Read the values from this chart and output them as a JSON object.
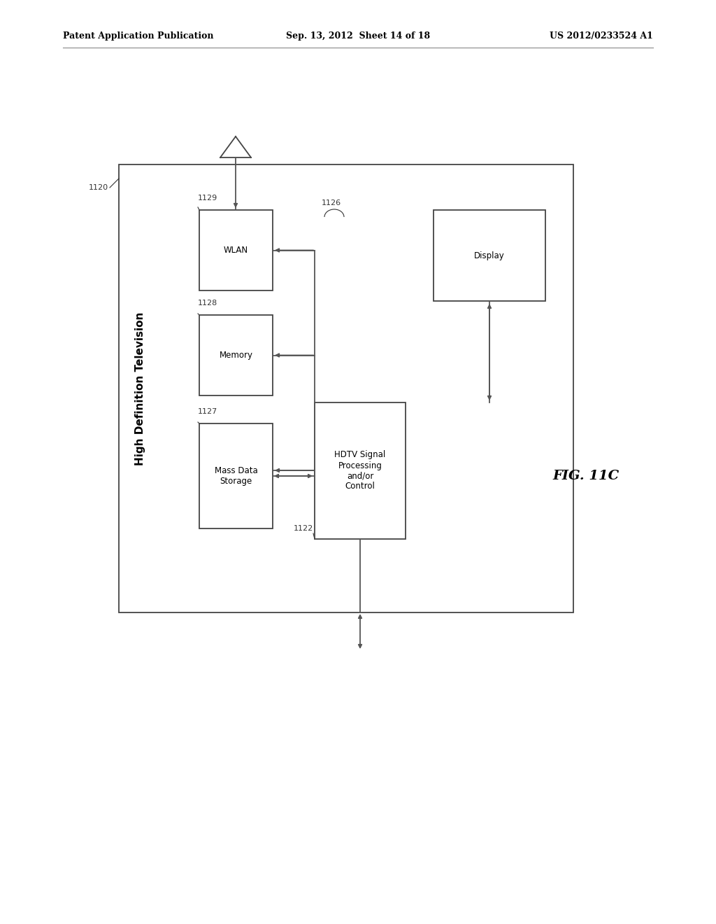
{
  "bg_color": "#ffffff",
  "header_left": "Patent Application Publication",
  "header_center": "Sep. 13, 2012  Sheet 14 of 18",
  "header_right": "US 2012/0233524 A1",
  "fig_label": "FIG. 11C",
  "outer_box_label": "1120",
  "outer_box_text": "High Definition Television",
  "line_color": "#555555",
  "box_edge_color": "#444444",
  "text_color": "#000000",
  "ref_color": "#333333",
  "font_size_box": 8.5,
  "font_size_header": 9,
  "font_size_fig": 14,
  "font_size_outer": 11,
  "font_size_ref": 8
}
